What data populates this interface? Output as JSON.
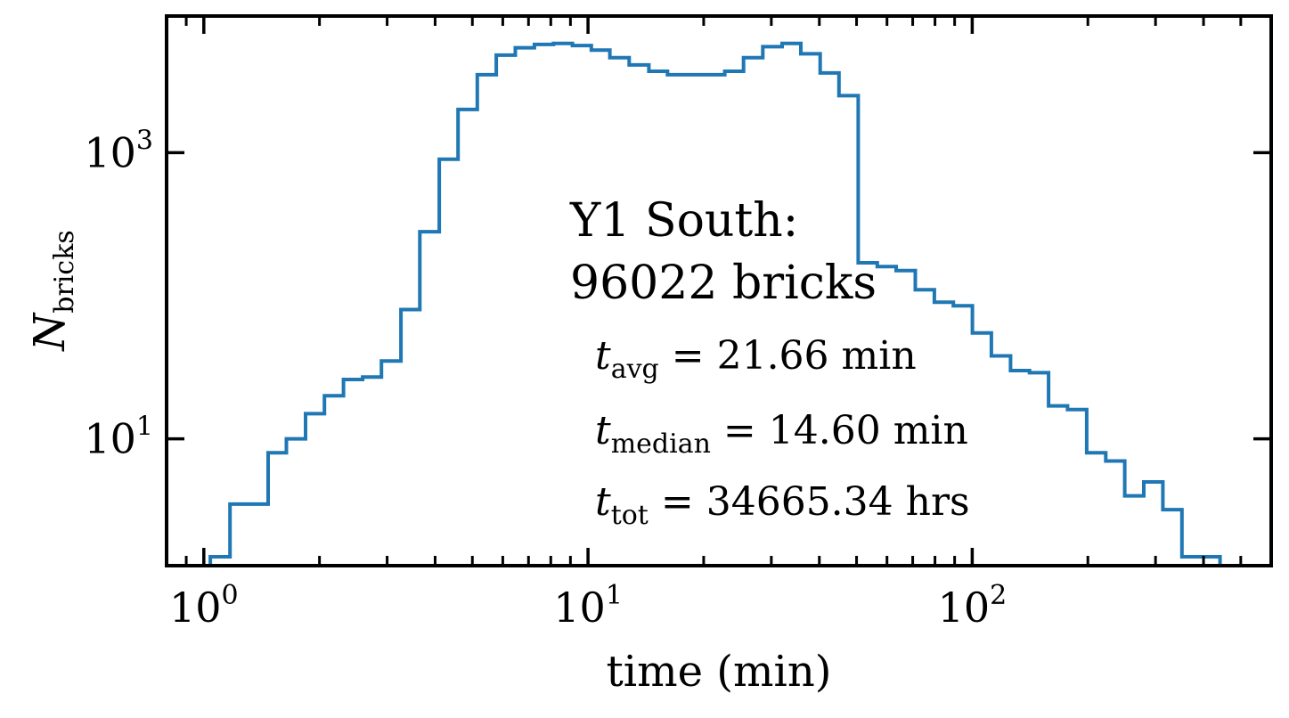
{
  "chart_data": {
    "type": "histogram-step",
    "xscale": "log",
    "yscale": "log",
    "xlim": [
      0.8,
      600
    ],
    "ylim": [
      1.3,
      9000
    ],
    "xlabel": "time (min)",
    "ylabel": {
      "base": "N",
      "sub": "bricks"
    },
    "xticks": [
      {
        "value": 1,
        "base": "10",
        "exp": "0"
      },
      {
        "value": 10,
        "base": "10",
        "exp": "1"
      },
      {
        "value": 100,
        "base": "10",
        "exp": "2"
      }
    ],
    "yticks": [
      {
        "value": 10,
        "base": "10",
        "exp": "1"
      },
      {
        "value": 1000,
        "base": "10",
        "exp": "3"
      }
    ],
    "line_color": "#1f77b4",
    "bin_edges": [
      1.04,
      1.17,
      1.3,
      1.47,
      1.64,
      1.84,
      2.06,
      2.31,
      2.59,
      2.9,
      3.26,
      3.65,
      4.1,
      4.59,
      5.15,
      5.77,
      6.47,
      7.25,
      8.13,
      9.11,
      10.2,
      11.4,
      12.8,
      14.4,
      16.1,
      18.1,
      20.2,
      22.7,
      25.4,
      28.5,
      32.0,
      35.8,
      40.2,
      45.0,
      50.5,
      56.6,
      63.4,
      71.1,
      79.7,
      89.3,
      100.1,
      112.2,
      125.8,
      141.0,
      158.0,
      177.1,
      198.6,
      222.6,
      249.5,
      279.7,
      313.5,
      351.4,
      394.0,
      441.6
    ],
    "counts": [
      1.5,
      3.5,
      3.5,
      8,
      10,
      15,
      20,
      26,
      27,
      35,
      80,
      280,
      900,
      2000,
      3500,
      4800,
      5400,
      5700,
      5800,
      5600,
      5200,
      4600,
      4100,
      3700,
      3500,
      3500,
      3500,
      3700,
      4600,
      5500,
      5800,
      4900,
      3600,
      2500,
      170,
      160,
      150,
      110,
      90,
      85,
      55,
      38,
      30,
      29,
      17,
      16,
      8,
      7,
      4,
      5,
      3.2,
      1.5,
      1.5
    ],
    "annotations": {
      "title_line1": "Y1 South:",
      "title_line2": "96022 bricks",
      "avg": {
        "var": "t",
        "sub": "avg",
        "text": " = 21.66 min"
      },
      "median": {
        "var": "t",
        "sub": "median",
        "text": " = 14.60 min"
      },
      "tot": {
        "var": "t",
        "sub": "tot",
        "text": " = 34665.34 hrs"
      }
    }
  }
}
